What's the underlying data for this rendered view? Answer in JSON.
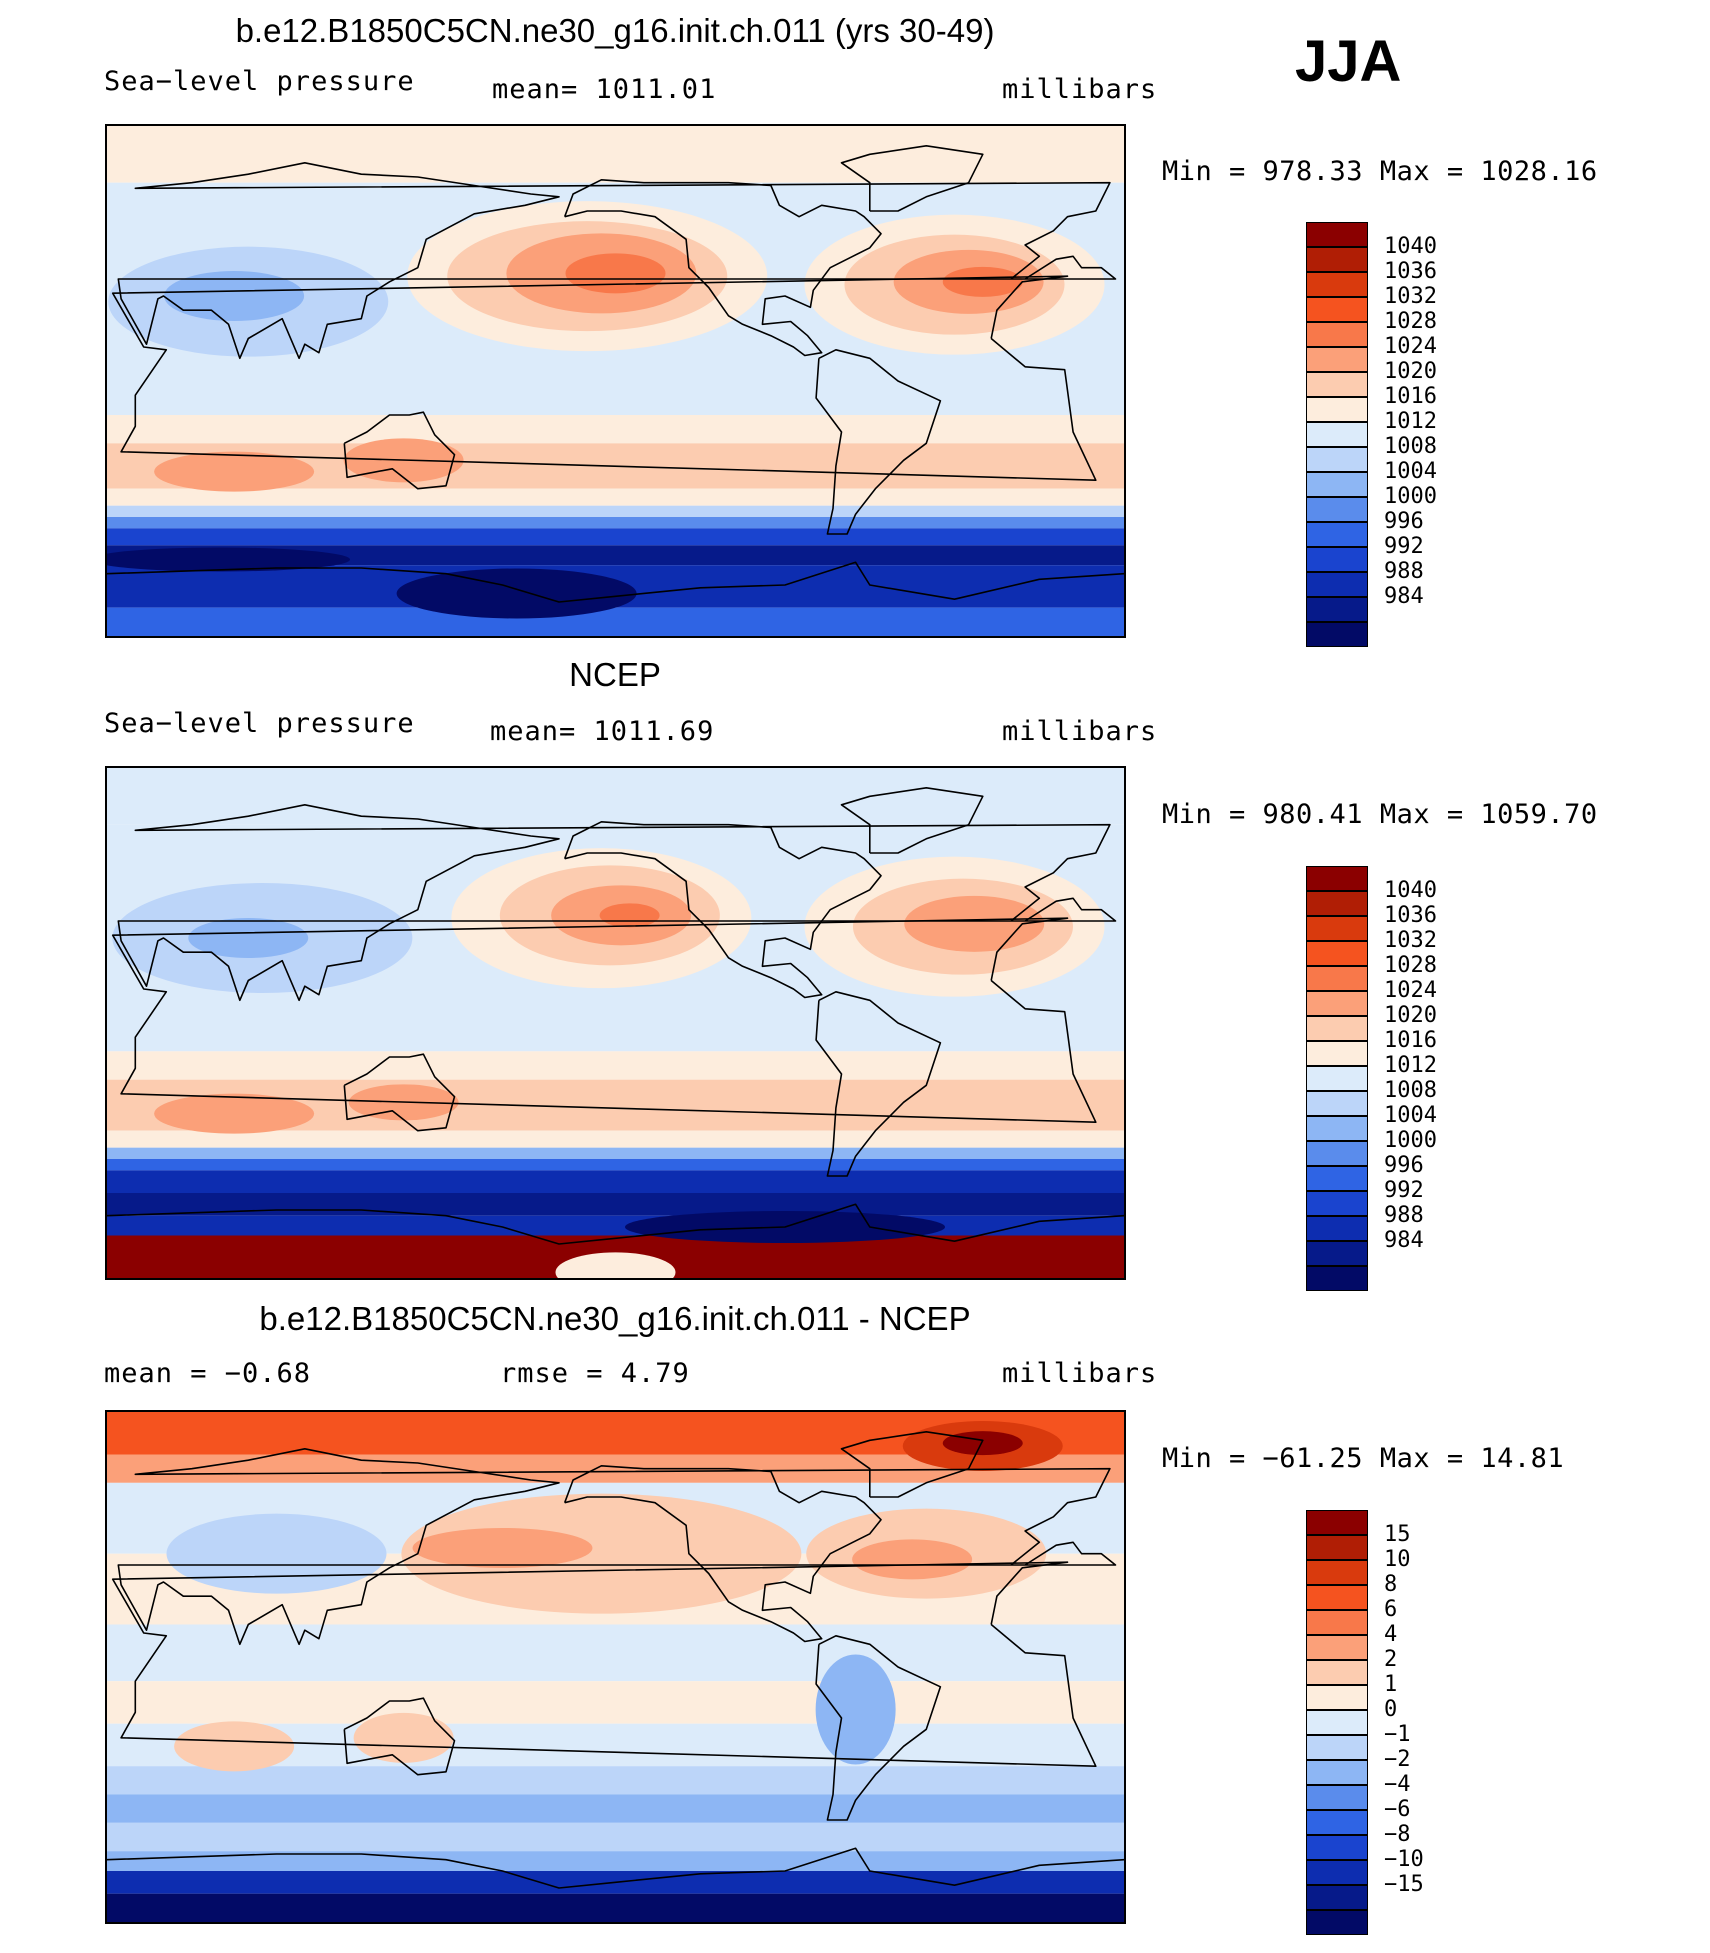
{
  "season": "JJA",
  "colors": {
    "pressure_scale": [
      "#8B0000",
      "#B01E05",
      "#D93A0D",
      "#F5531F",
      "#F8784A",
      "#FBA079",
      "#FCCCB0",
      "#FDEDDD",
      "#DCEBFA",
      "#BCD5F9",
      "#8DB6F4",
      "#5A8CEC",
      "#2F64E4",
      "#1A44CF",
      "#0D2DB0",
      "#061A8A",
      "#020A66"
    ],
    "diff_scale": [
      "#8B0000",
      "#B01E05",
      "#D93A0D",
      "#F5531F",
      "#F8784A",
      "#FBA079",
      "#FCCCB0",
      "#FDEDDD",
      "#DCEBFA",
      "#BCD5F9",
      "#8DB6F4",
      "#5A8CEC",
      "#2F64E4",
      "#1A44CF",
      "#0D2DB0",
      "#061A8A",
      "#020A66"
    ],
    "coast": "#000000"
  },
  "chart_data": [
    {
      "type": "heatmap",
      "title": "b.e12.B1850C5CN.ne30_g16.init.ch.011 (yrs 30-49)",
      "variable": "Sea−level pressure",
      "mean_text": "mean=  1011.01",
      "units": "millibars",
      "minmax_text": "Min  =  978.33  Max  =  1028.16",
      "min": 978.33,
      "max": 1028.16,
      "colorbar_labels": [
        "1040",
        "1036",
        "1032",
        "1028",
        "1024",
        "1020",
        "1016",
        "1012",
        "1008",
        "1004",
        "1000",
        "996",
        "992",
        "988",
        "984"
      ]
    },
    {
      "type": "heatmap",
      "title": "NCEP",
      "variable": "Sea−level pressure",
      "mean_text": "mean=  1011.69",
      "units": "millibars",
      "minmax_text": "Min  =  980.41  Max  =  1059.70",
      "min": 980.41,
      "max": 1059.7,
      "colorbar_labels": [
        "1040",
        "1036",
        "1032",
        "1028",
        "1024",
        "1020",
        "1016",
        "1012",
        "1008",
        "1004",
        "1000",
        "996",
        "992",
        "988",
        "984"
      ]
    },
    {
      "type": "heatmap",
      "title": "b.e12.B1850C5CN.ne30_g16.init.ch.011 - NCEP",
      "variable": "mean  =    −0.68",
      "mean_text": "rmse  =     4.79",
      "units": "millibars",
      "minmax_text": "Min  =  −61.25  Max  =    14.81",
      "min": -61.25,
      "max": 14.81,
      "mean": -0.68,
      "rmse": 4.79,
      "colorbar_labels": [
        "15",
        "10",
        "8",
        "6",
        "4",
        "2",
        "1",
        "0",
        "−1",
        "−2",
        "−4",
        "−6",
        "−8",
        "−10",
        "−15"
      ]
    }
  ]
}
